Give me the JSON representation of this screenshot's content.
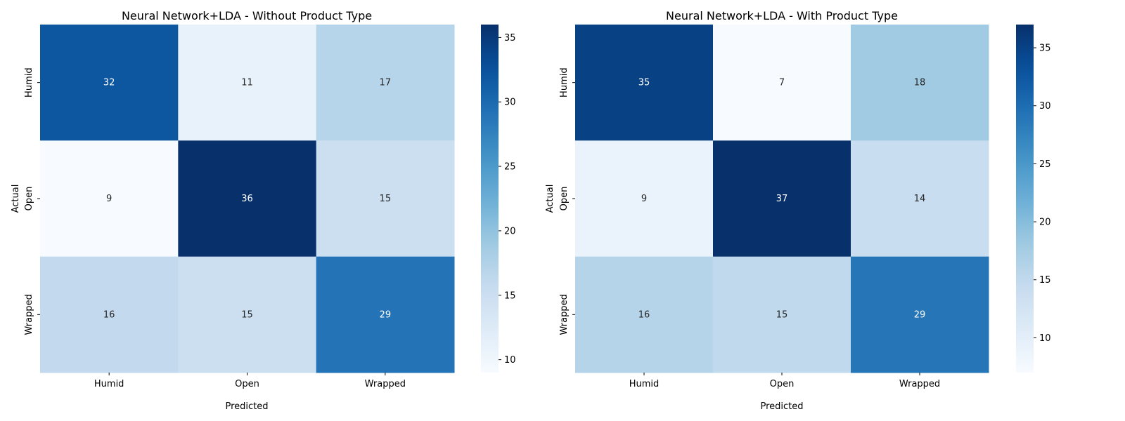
{
  "chart_data": [
    {
      "type": "heatmap",
      "title": "Neural Network+LDA - Without Product Type",
      "xlabel": "Predicted",
      "ylabel": "Actual",
      "x_categories": [
        "Humid",
        "Open",
        "Wrapped"
      ],
      "y_categories": [
        "Humid",
        "Open",
        "Wrapped"
      ],
      "values": [
        [
          32,
          11,
          17
        ],
        [
          9,
          36,
          15
        ],
        [
          16,
          15,
          29
        ]
      ],
      "colorscale": "Blues",
      "colorbar": {
        "range": [
          9,
          36
        ],
        "ticks": [
          10,
          15,
          20,
          25,
          30,
          35
        ]
      }
    },
    {
      "type": "heatmap",
      "title": "Neural Network+LDA - With Product Type",
      "xlabel": "Predicted",
      "ylabel": "Actual",
      "x_categories": [
        "Humid",
        "Open",
        "Wrapped"
      ],
      "y_categories": [
        "Humid",
        "Open",
        "Wrapped"
      ],
      "values": [
        [
          35,
          7,
          18
        ],
        [
          9,
          37,
          14
        ],
        [
          16,
          15,
          29
        ]
      ],
      "colorscale": "Blues",
      "colorbar": {
        "range": [
          7,
          37
        ],
        "ticks": [
          10,
          15,
          20,
          25,
          30,
          35
        ]
      }
    }
  ]
}
